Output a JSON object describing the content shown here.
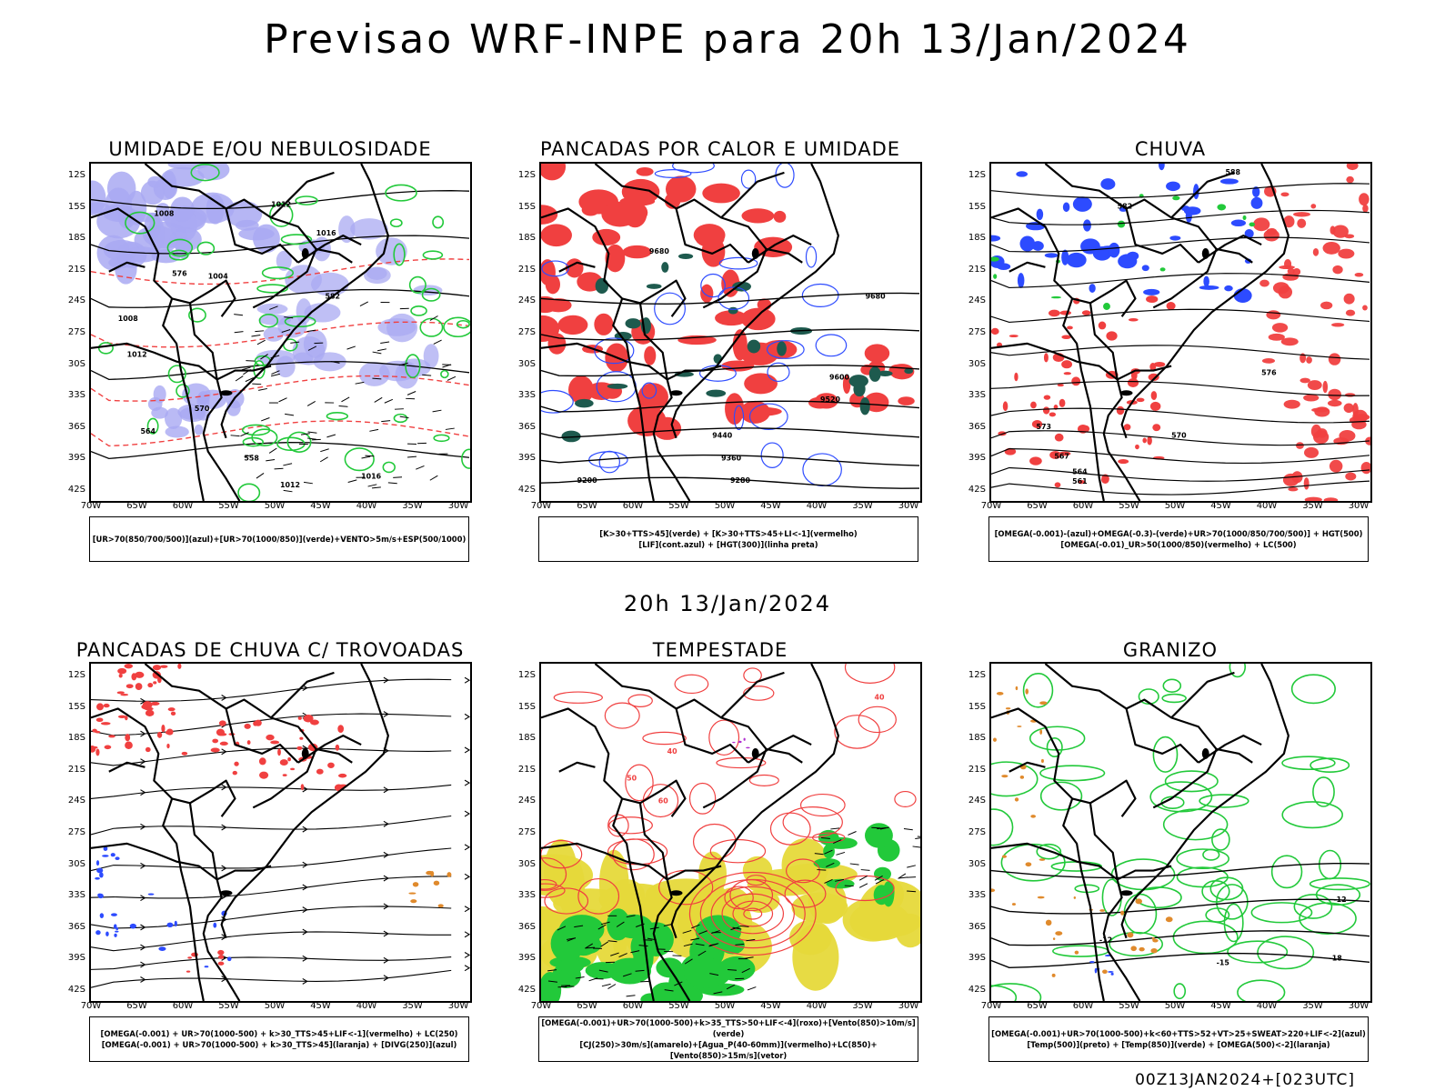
{
  "page": {
    "title": "Previsao WRF-INPE  para 20h 13/Jan/2024",
    "mid_title": "20h 13/Jan/2024",
    "footer_stamp": "00Z13JAN2024+[023UTC]"
  },
  "axes": {
    "lat_ticks": [
      "12S",
      "15S",
      "18S",
      "21S",
      "24S",
      "27S",
      "30S",
      "33S",
      "36S",
      "39S",
      "42S"
    ],
    "lon_ticks": [
      "70W",
      "65W",
      "60W",
      "55W",
      "50W",
      "45W",
      "40W",
      "35W",
      "30W"
    ]
  },
  "panels": [
    {
      "title": "UMIDADE E/OU NEBULOSIDADE",
      "legend": [
        "[UR>70(850/700/500)](azul)+[UR>70(1000/850)](verde)+VENTO>5m/s+ESP(500/1000)"
      ],
      "contour_labels": [
        "1008",
        "1012",
        "1016",
        "1004",
        "1008",
        "1012",
        "582",
        "576",
        "570",
        "564",
        "558",
        "1016",
        "1012"
      ]
    },
    {
      "title": "PANCADAS POR CALOR E UMIDADE",
      "legend": [
        "[K>30+TTS>45](verde) + [K>30+TTS>45+LI<-1](vermelho)",
        "[LIF](cont.azul) + [HGT(300)](linha preta)"
      ],
      "contour_labels": [
        "9680",
        "9680",
        "9600",
        "9520",
        "9440",
        "9360",
        "9280",
        "9200"
      ]
    },
    {
      "title": "CHUVA",
      "legend": [
        "[OMEGA(-0.001)-(azul)+OMEGA(-0.3)-(verde)+UR>70(1000/850/700/500)] + HGT(500)",
        "[OMEGA(-0.01)_UR>50(1000/850)(vermelho) + LC(500)"
      ],
      "contour_labels": [
        "588",
        "582",
        "576",
        "573",
        "570",
        "567",
        "564",
        "561"
      ]
    },
    {
      "title": "PANCADAS DE CHUVA C/ TROVOADAS",
      "legend": [
        "[OMEGA(-0.001) + UR>70(1000-500) + k>30_TTS>45+LIF<-1](vermelho) + LC(250)",
        "[OMEGA(-0.001) + UR>70(1000-500) + k>30_TTS>45](laranja) + [DIVG(250)](azul)"
      ],
      "contour_labels": []
    },
    {
      "title": "TEMPESTADE",
      "legend": [
        "[OMEGA(-0.001)+UR>70(1000-500)+k>35_TTS>50+LIF<-4](roxo)+[Vento(850)>10m/s](verde)",
        "[CJ(250)>30m/s](amarelo)+[Agua_P(40-60mm)](vermelho)+LC(850)+[Vento(850)>15m/s](vetor)"
      ],
      "contour_labels": [
        "40",
        "50",
        "60",
        "40"
      ]
    },
    {
      "title": "GRANIZO",
      "legend": [
        "[OMEGA(-0.001)+UR>70(1000-500)+k<60+TTS>52+VT>25+SWEAT>220+LIF<-2](azul)",
        "[Temp(500)](preto) + [Temp(850)](verde) + [OMEGA(500)<-2](laranja)"
      ],
      "contour_labels": [
        "-12",
        "-12",
        "-15",
        "-18"
      ]
    }
  ],
  "colors": {
    "blue_humidity": "#a9a9f2",
    "green": "#22c93a",
    "red": "#f04040",
    "dark_green": "#1e5a4e",
    "yellow": "#e6d93a",
    "blue": "#2d4bff",
    "orange": "#e08a2c",
    "purple": "#b030d0"
  }
}
